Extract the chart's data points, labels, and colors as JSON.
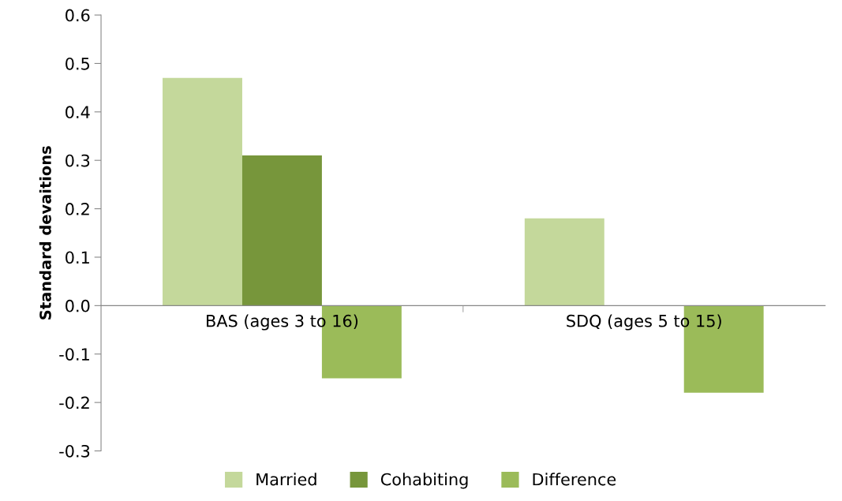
{
  "chart_data": {
    "type": "bar",
    "ylabel": "Standard devaitions",
    "categories": [
      "BAS (ages 3 to 16)",
      "SDQ (ages 5 to 15)"
    ],
    "series": [
      {
        "name": "Married",
        "color": "#c4d89b",
        "values": [
          0.47,
          0.18
        ]
      },
      {
        "name": "Cohabiting",
        "color": "#77963b",
        "values": [
          0.31,
          0.0
        ]
      },
      {
        "name": "Difference",
        "color": "#9bbb59",
        "values": [
          -0.15,
          -0.18
        ]
      }
    ],
    "ylim": [
      -0.3,
      0.6
    ],
    "yticks": [
      {
        "value": -0.3,
        "label": "-0.3"
      },
      {
        "value": -0.2,
        "label": "-0.2"
      },
      {
        "value": -0.1,
        "label": "-0.1"
      },
      {
        "value": 0,
        "label": "0.0"
      },
      {
        "value": 0.1,
        "label": "0.1"
      },
      {
        "value": 0.2,
        "label": "0.2"
      },
      {
        "value": 0.3,
        "label": "0.3"
      },
      {
        "value": 0.4,
        "label": "0.4"
      },
      {
        "value": 0.5,
        "label": "0.5"
      },
      {
        "value": 0.6,
        "label": "0.6"
      }
    ],
    "grid": false,
    "legend": "bottom"
  }
}
